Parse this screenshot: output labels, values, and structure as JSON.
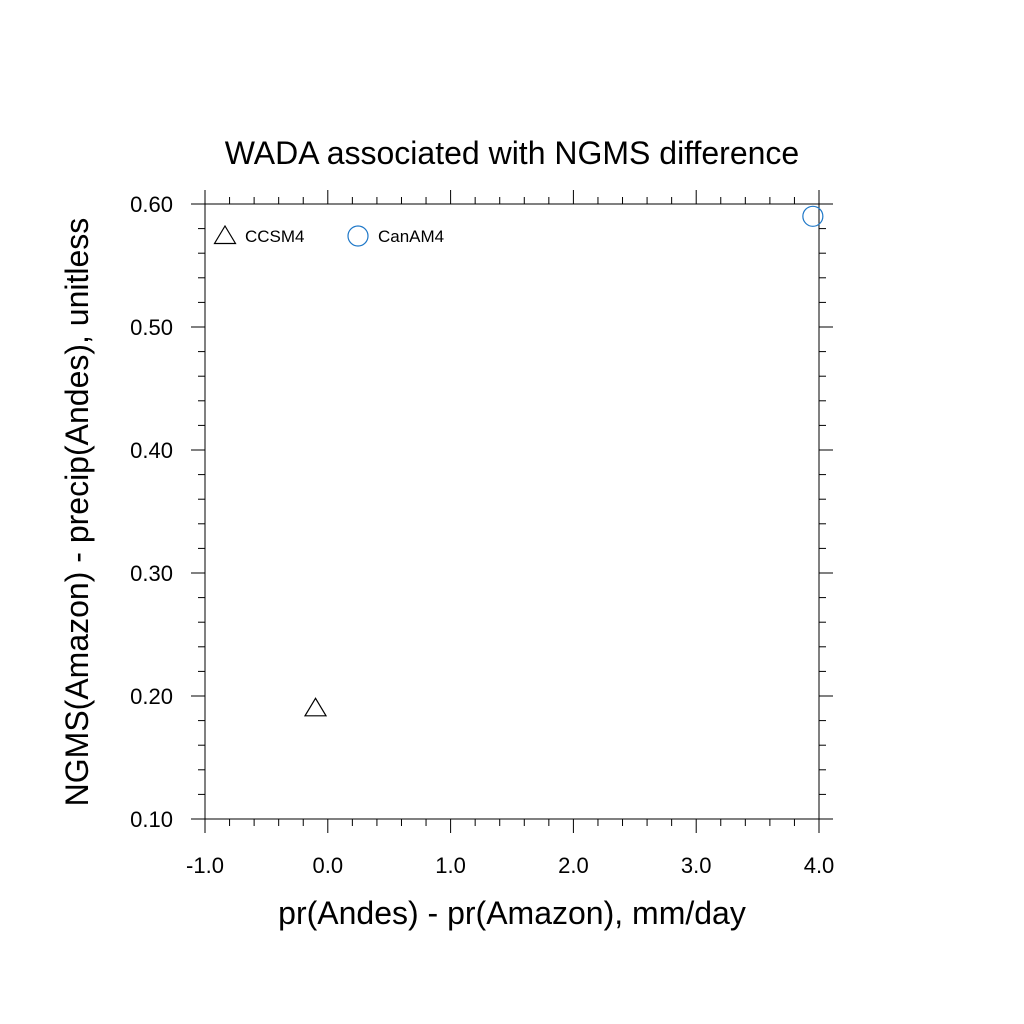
{
  "chart_data": {
    "type": "scatter",
    "title": "WADA associated with NGMS difference",
    "xlabel": "pr(Andes) - pr(Amazon), mm/day",
    "ylabel": "NGMS(Amazon) - precip(Andes), unitless",
    "xlim": [
      -1.0,
      4.0
    ],
    "ylim": [
      0.1,
      0.6
    ],
    "xticks": [
      "-1.0",
      "0.0",
      "1.0",
      "2.0",
      "3.0",
      "4.0"
    ],
    "yticks": [
      "0.10",
      "0.20",
      "0.30",
      "0.40",
      "0.50",
      "0.60"
    ],
    "grid": false,
    "legend_position": "top-left",
    "series": [
      {
        "name": "CCSM4",
        "marker": "triangle",
        "color": "#000000",
        "x": [
          -0.1
        ],
        "y": [
          0.19
        ]
      },
      {
        "name": "CanAM4",
        "marker": "circle",
        "color": "#1f78c8",
        "x": [
          3.95
        ],
        "y": [
          0.59
        ]
      }
    ]
  }
}
